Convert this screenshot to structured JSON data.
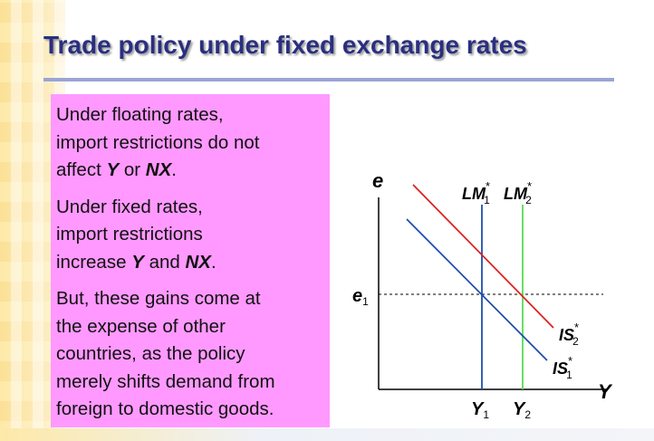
{
  "title": "Trade policy under fixed exchange rates",
  "paragraphs": [
    {
      "before": "Under floating rates,\nimport restrictions do not\naffect ",
      "y": "Y",
      "mid": " or ",
      "nx": "NX",
      "after": "."
    },
    {
      "before": "Under fixed rates,\nimport restrictions\nincrease ",
      "y": "Y",
      "mid": " and ",
      "nx": "NX",
      "after": "."
    },
    {
      "text": "But, these gains come at\nthe expense of other\ncountries, as the policy\nmerely shifts demand from\nforeign to domestic goods."
    }
  ],
  "diagram": {
    "y_axis_label": "e",
    "x_axis_label": "Y",
    "e1": {
      "main": "e",
      "sub": "1"
    },
    "lm1": {
      "main": "LM",
      "sup": "*",
      "sub": "1"
    },
    "lm2": {
      "main": "LM",
      "sup": "*",
      "sub": "2"
    },
    "is1": {
      "main": "IS",
      "sup": "*",
      "sub": "1"
    },
    "is2": {
      "main": "IS",
      "sup": "*",
      "sub": "2"
    },
    "y1": {
      "main": "Y",
      "sub": "1"
    },
    "y2": {
      "main": "Y",
      "sub": "2"
    },
    "colors": {
      "axis": "#000000",
      "lm1": "#1f4fb0",
      "lm2": "#55dd55",
      "is1": "#1f4fb0",
      "is2": "#dd2222",
      "e1_line": "#000000"
    }
  }
}
